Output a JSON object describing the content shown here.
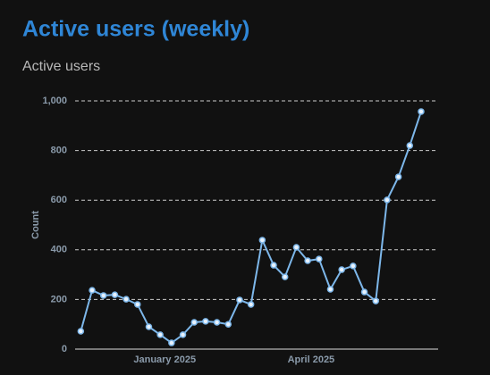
{
  "chart_data": {
    "type": "line",
    "title": "Active users (weekly)",
    "subtitle": "Active users",
    "y_label": "Count",
    "x": [
      0,
      1,
      2,
      3,
      4,
      5,
      6,
      7,
      8,
      9,
      10,
      11,
      12,
      13,
      14,
      15,
      16,
      17,
      18,
      19,
      20,
      21,
      22,
      23,
      24,
      25,
      26,
      27,
      28,
      29,
      30
    ],
    "xlim": [
      -0.5,
      31.5
    ],
    "xticks": [
      {
        "value": 7.4,
        "label": "January 2025"
      },
      {
        "value": 20.3,
        "label": "April 2025"
      }
    ],
    "series": [
      {
        "name": "Active users",
        "color": "#7db7ea",
        "values": [
          72,
          237,
          216,
          219,
          201,
          180,
          90,
          58,
          25,
          58,
          108,
          112,
          108,
          100,
          198,
          180,
          439,
          338,
          291,
          410,
          356,
          363,
          241,
          320,
          335,
          230,
          194,
          601,
          694,
          820,
          957
        ]
      }
    ],
    "ylim": [
      0,
      1000
    ],
    "yticks": [
      0,
      200,
      400,
      600,
      800,
      {
        "value": 1000,
        "label": "1,000"
      }
    ],
    "grid": true
  }
}
